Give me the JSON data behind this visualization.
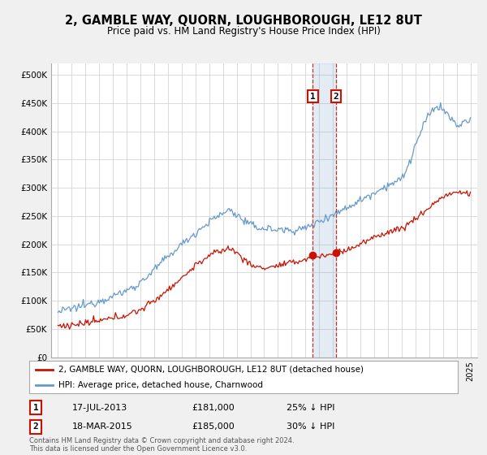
{
  "title": "2, GAMBLE WAY, QUORN, LOUGHBOROUGH, LE12 8UT",
  "subtitle": "Price paid vs. HM Land Registry's House Price Index (HPI)",
  "hpi_color": "#6699cc",
  "price_color": "#cc1100",
  "vline_color": "#cc1100",
  "bg_color": "#f0f0f0",
  "plot_bg": "#ffffff",
  "legend_label_price": "2, GAMBLE WAY, QUORN, LOUGHBOROUGH, LE12 8UT (detached house)",
  "legend_label_hpi": "HPI: Average price, detached house, Charnwood",
  "transaction1_date": "17-JUL-2013",
  "transaction1_price": "£181,000",
  "transaction1_hpi": "25% ↓ HPI",
  "transaction1_year": 2013.54,
  "transaction2_date": "18-MAR-2015",
  "transaction2_price": "£185,000",
  "transaction2_hpi": "30% ↓ HPI",
  "transaction2_year": 2015.21,
  "transaction1_value": 181000,
  "transaction2_value": 185000,
  "footer": "Contains HM Land Registry data © Crown copyright and database right 2024.\nThis data is licensed under the Open Government Licence v3.0."
}
